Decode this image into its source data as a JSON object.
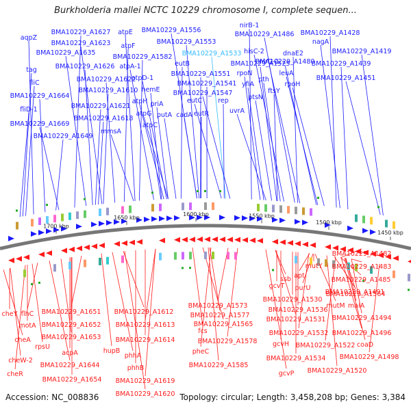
{
  "title": "Burkholderia mallei NCTC 10229 chromosome I, complete sequen...",
  "footer": {
    "accession": "Accession: NC_008836",
    "stats": "Topology: circular; Length: 3,458,208 bp; Genes: 3,384"
  },
  "colors": {
    "forward": "#1a1aff",
    "reverse": "#ff1a1a",
    "highlight": "#33bbff",
    "backbone": "#777777"
  },
  "kbp_labels": [
    "1450 kbp",
    "1500 kbp",
    "1550 kbp",
    "1600 kbp",
    "1650 kbp",
    "1700 kbp"
  ],
  "top_labels": [
    {
      "text": "BMA10229_A1627"
    },
    {
      "text": "atpE"
    },
    {
      "text": "BMA10229_A1556"
    },
    {
      "text": "nirB-1"
    },
    {
      "text": "aqpZ"
    },
    {
      "text": "BMA10229_A1623"
    },
    {
      "text": "atpF"
    },
    {
      "text": "BMA10229_A1553"
    },
    {
      "text": "BMA10229_A1486"
    },
    {
      "text": "BMA10229_A1428"
    },
    {
      "text": "nagA"
    },
    {
      "text": "BMA10229_A1635"
    },
    {
      "text": "BMA10229_A1582"
    },
    {
      "text": "BMA10229_A1533",
      "highlight": true
    },
    {
      "text": "hisC-2"
    },
    {
      "text": "dnaE2"
    },
    {
      "text": "BMA10229_A1419"
    },
    {
      "text": "BMA10229_A1480"
    },
    {
      "text": "tag"
    },
    {
      "text": "BMA10229_A1626"
    },
    {
      "text": "atpA-1"
    },
    {
      "text": "eutB"
    },
    {
      "text": "BMA10229_A1525"
    },
    {
      "text": "nirD-1"
    },
    {
      "text": "BMA10229_A1439"
    },
    {
      "text": "rpoN"
    },
    {
      "text": "leuA"
    },
    {
      "text": "BMA10229_A1551"
    },
    {
      "text": "BMA10229_A1622"
    },
    {
      "text": "atpD-1"
    },
    {
      "text": "fliC"
    },
    {
      "text": "pth"
    },
    {
      "text": "BMA10229_A1451"
    },
    {
      "text": "BMA10229_A1541"
    },
    {
      "text": "yfiA"
    },
    {
      "text": "rpoH"
    },
    {
      "text": "BMA10229_A1610"
    },
    {
      "text": "hemE"
    },
    {
      "text": "BMA10229_A1547"
    },
    {
      "text": "ftsY"
    },
    {
      "text": "BMA10229_A1664"
    },
    {
      "text": "eutC"
    },
    {
      "text": "rep"
    },
    {
      "text": "ptsN"
    },
    {
      "text": "atpH"
    },
    {
      "text": "BMA10229_A1621"
    },
    {
      "text": "priA"
    },
    {
      "text": "uvrA"
    },
    {
      "text": "fliD-1"
    },
    {
      "text": "cadA"
    },
    {
      "text": "atpG"
    },
    {
      "text": "eutR"
    },
    {
      "text": "putA"
    },
    {
      "text": "BMA10229_A1669"
    },
    {
      "text": "BMA10229_A1618"
    },
    {
      "text": "atpC"
    },
    {
      "text": "mmsA"
    },
    {
      "text": "BMA10229_A1649"
    }
  ],
  "bottom_labels": [
    {
      "text": "BMA10229_A1482"
    },
    {
      "text": "BMA10229_A1483"
    },
    {
      "text": "mutY"
    },
    {
      "text": "apt"
    },
    {
      "text": "BMA10229_A1485"
    },
    {
      "text": "ssb"
    },
    {
      "text": "gcvT"
    },
    {
      "text": "purU"
    },
    {
      "text": "BMA10229_A1491"
    },
    {
      "text": "BMA10229_A1564"
    },
    {
      "text": "BMA10229_A1530"
    },
    {
      "text": "BMA10229_A1573"
    },
    {
      "text": "mutM"
    },
    {
      "text": "maiA"
    },
    {
      "text": "BMA10229_A1536"
    },
    {
      "text": "BMA10229_A1651"
    },
    {
      "text": "BMA10229_A1612"
    },
    {
      "text": "BMA10229_A1577"
    },
    {
      "text": "cheY"
    },
    {
      "text": "flhC"
    },
    {
      "text": "BMA10229_A1531"
    },
    {
      "text": "BMA10229_A1494"
    },
    {
      "text": "BMA10229_A1652"
    },
    {
      "text": "BMA10229_A1613"
    },
    {
      "text": "BMA10229_A1565"
    },
    {
      "text": "fcs"
    },
    {
      "text": "motA"
    },
    {
      "text": "BMA10229_A1532"
    },
    {
      "text": "BMA10229_A1496"
    },
    {
      "text": "BMA10229_A1653"
    },
    {
      "text": "BMA10229_A1614"
    },
    {
      "text": "BMA10229_A1578"
    },
    {
      "text": "cheA"
    },
    {
      "text": "rpsU"
    },
    {
      "text": "gcvH"
    },
    {
      "text": "BMA10229_A1522"
    },
    {
      "text": "coaD"
    },
    {
      "text": "hupB"
    },
    {
      "text": "acpA"
    },
    {
      "text": "pheC"
    },
    {
      "text": "phhA"
    },
    {
      "text": "cheW-2"
    },
    {
      "text": "BMA10229_A1534"
    },
    {
      "text": "BMA10229_A1498"
    },
    {
      "text": "BMA10229_A1644"
    },
    {
      "text": "BMA10229_A1585"
    },
    {
      "text": "phhB"
    },
    {
      "text": "cheR"
    },
    {
      "text": "gcvP"
    },
    {
      "text": "BMA10229_A1520"
    },
    {
      "text": "BMA10229_A1654"
    },
    {
      "text": "BMA10229_A1619"
    },
    {
      "text": "BMA10229_A1620"
    }
  ]
}
